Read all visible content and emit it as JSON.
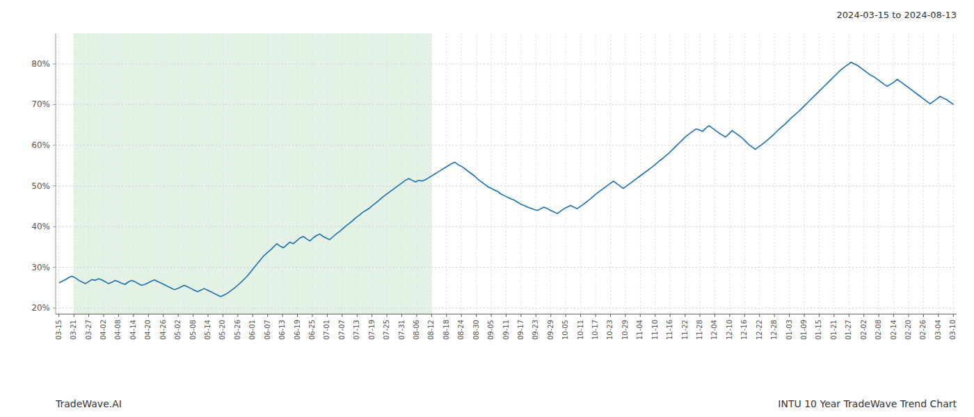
{
  "chart_data": {
    "type": "line",
    "title": "2024-03-15 to 2024-08-13",
    "annotations": [
      "TradeWave.AI",
      "INTU 10 Year TradeWave Trend Chart"
    ],
    "color": "#1a6faf",
    "grid": true,
    "shade": {
      "from": "03-21",
      "to": "08-12",
      "color": "#c8e6c9"
    },
    "xlim": [
      -1,
      272
    ],
    "xticks": [
      {
        "value": 0,
        "label": "03-15"
      },
      {
        "value": 4.5167,
        "label": "03-21"
      },
      {
        "value": 9.0333,
        "label": "03-27"
      },
      {
        "value": 13.55,
        "label": "04-02"
      },
      {
        "value": 18.0667,
        "label": "04-08"
      },
      {
        "value": 22.5833,
        "label": "04-14"
      },
      {
        "value": 27.1,
        "label": "04-20"
      },
      {
        "value": 31.6167,
        "label": "04-26"
      },
      {
        "value": 36.1333,
        "label": "05-02"
      },
      {
        "value": 40.65,
        "label": "05-08"
      },
      {
        "value": 45.1667,
        "label": "05-14"
      },
      {
        "value": 49.6833,
        "label": "05-20"
      },
      {
        "value": 54.2,
        "label": "05-26"
      },
      {
        "value": 58.7167,
        "label": "06-01"
      },
      {
        "value": 63.2333,
        "label": "06-07"
      },
      {
        "value": 67.75,
        "label": "06-13"
      },
      {
        "value": 72.2667,
        "label": "06-19"
      },
      {
        "value": 76.7833,
        "label": "06-25"
      },
      {
        "value": 81.3,
        "label": "07-01"
      },
      {
        "value": 85.8167,
        "label": "07-07"
      },
      {
        "value": 90.3333,
        "label": "07-13"
      },
      {
        "value": 94.85,
        "label": "07-19"
      },
      {
        "value": 99.3667,
        "label": "07-25"
      },
      {
        "value": 103.8833,
        "label": "07-31"
      },
      {
        "value": 108.4,
        "label": "08-06"
      },
      {
        "value": 112.9167,
        "label": "08-12"
      },
      {
        "value": 117.4333,
        "label": "08-18"
      },
      {
        "value": 121.95,
        "label": "08-24"
      },
      {
        "value": 126.4667,
        "label": "08-30"
      },
      {
        "value": 130.9833,
        "label": "09-05"
      },
      {
        "value": 135.5,
        "label": "09-11"
      },
      {
        "value": 140.0167,
        "label": "09-17"
      },
      {
        "value": 144.5333,
        "label": "09-23"
      },
      {
        "value": 149.05,
        "label": "09-29"
      },
      {
        "value": 153.5667,
        "label": "10-05"
      },
      {
        "value": 158.0833,
        "label": "10-11"
      },
      {
        "value": 162.6,
        "label": "10-17"
      },
      {
        "value": 167.1167,
        "label": "10-23"
      },
      {
        "value": 171.6333,
        "label": "10-29"
      },
      {
        "value": 176.15,
        "label": "11-04"
      },
      {
        "value": 180.6667,
        "label": "11-10"
      },
      {
        "value": 185.1833,
        "label": "11-16"
      },
      {
        "value": 189.7,
        "label": "11-22"
      },
      {
        "value": 194.2167,
        "label": "11-28"
      },
      {
        "value": 198.7333,
        "label": "12-04"
      },
      {
        "value": 203.25,
        "label": "12-10"
      },
      {
        "value": 207.7667,
        "label": "12-16"
      },
      {
        "value": 212.2833,
        "label": "12-22"
      },
      {
        "value": 216.8,
        "label": "12-28"
      },
      {
        "value": 221.3167,
        "label": "01-03"
      },
      {
        "value": 225.8333,
        "label": "01-09"
      },
      {
        "value": 230.35,
        "label": "01-15"
      },
      {
        "value": 234.8667,
        "label": "01-21"
      },
      {
        "value": 239.3833,
        "label": "01-27"
      },
      {
        "value": 243.9,
        "label": "02-02"
      },
      {
        "value": 248.4167,
        "label": "02-08"
      },
      {
        "value": 252.9333,
        "label": "02-14"
      },
      {
        "value": 257.45,
        "label": "02-20"
      },
      {
        "value": 261.9667,
        "label": "02-26"
      },
      {
        "value": 266.4833,
        "label": "03-04"
      },
      {
        "value": 271,
        "label": "03-10"
      }
    ],
    "ylim": [
      0.185,
      0.875
    ],
    "yticks": [
      {
        "value": 0.2,
        "label": "20%"
      },
      {
        "value": 0.3,
        "label": "30%"
      },
      {
        "value": 0.4,
        "label": "40%"
      },
      {
        "value": 0.5,
        "label": "50%"
      },
      {
        "value": 0.6,
        "label": "60%"
      },
      {
        "value": 0.7,
        "label": "70%"
      },
      {
        "value": 0.8,
        "label": "80%"
      }
    ],
    "values": [
      0.262,
      0.266,
      0.27,
      0.275,
      0.278,
      0.274,
      0.268,
      0.264,
      0.26,
      0.265,
      0.27,
      0.268,
      0.272,
      0.269,
      0.265,
      0.26,
      0.263,
      0.268,
      0.265,
      0.261,
      0.258,
      0.264,
      0.268,
      0.265,
      0.26,
      0.256,
      0.258,
      0.262,
      0.266,
      0.269,
      0.265,
      0.261,
      0.257,
      0.253,
      0.249,
      0.245,
      0.248,
      0.252,
      0.256,
      0.252,
      0.248,
      0.244,
      0.24,
      0.244,
      0.248,
      0.244,
      0.24,
      0.236,
      0.232,
      0.228,
      0.232,
      0.236,
      0.242,
      0.248,
      0.255,
      0.262,
      0.27,
      0.278,
      0.288,
      0.298,
      0.308,
      0.318,
      0.328,
      0.335,
      0.342,
      0.35,
      0.358,
      0.352,
      0.348,
      0.355,
      0.362,
      0.358,
      0.365,
      0.372,
      0.376,
      0.37,
      0.365,
      0.372,
      0.378,
      0.382,
      0.376,
      0.372,
      0.368,
      0.375,
      0.382,
      0.388,
      0.395,
      0.402,
      0.408,
      0.415,
      0.422,
      0.428,
      0.435,
      0.44,
      0.445,
      0.452,
      0.458,
      0.465,
      0.472,
      0.478,
      0.484,
      0.49,
      0.496,
      0.502,
      0.508,
      0.514,
      0.518,
      0.514,
      0.51,
      0.514,
      0.512,
      0.515,
      0.52,
      0.525,
      0.53,
      0.535,
      0.54,
      0.545,
      0.55,
      0.555,
      0.558,
      0.552,
      0.548,
      0.542,
      0.536,
      0.53,
      0.524,
      0.516,
      0.51,
      0.504,
      0.498,
      0.494,
      0.49,
      0.486,
      0.48,
      0.476,
      0.472,
      0.468,
      0.465,
      0.46,
      0.455,
      0.452,
      0.448,
      0.445,
      0.442,
      0.44,
      0.444,
      0.448,
      0.444,
      0.44,
      0.436,
      0.432,
      0.438,
      0.444,
      0.448,
      0.452,
      0.448,
      0.444,
      0.45,
      0.455,
      0.462,
      0.468,
      0.475,
      0.482,
      0.488,
      0.494,
      0.5,
      0.506,
      0.512,
      0.506,
      0.5,
      0.494,
      0.5,
      0.506,
      0.512,
      0.518,
      0.524,
      0.53,
      0.536,
      0.542,
      0.548,
      0.555,
      0.562,
      0.568,
      0.575,
      0.582,
      0.59,
      0.598,
      0.606,
      0.614,
      0.622,
      0.628,
      0.634,
      0.64,
      0.638,
      0.634,
      0.642,
      0.648,
      0.642,
      0.636,
      0.63,
      0.625,
      0.62,
      0.628,
      0.636,
      0.63,
      0.624,
      0.618,
      0.61,
      0.602,
      0.596,
      0.59,
      0.596,
      0.602,
      0.608,
      0.615,
      0.622,
      0.63,
      0.638,
      0.645,
      0.652,
      0.66,
      0.668,
      0.675,
      0.682,
      0.69,
      0.698,
      0.706,
      0.714,
      0.722,
      0.73,
      0.738,
      0.746,
      0.754,
      0.762,
      0.77,
      0.778,
      0.786,
      0.792,
      0.798,
      0.804,
      0.8,
      0.796,
      0.79,
      0.784,
      0.778,
      0.772,
      0.768,
      0.762,
      0.756,
      0.75,
      0.745,
      0.75,
      0.755,
      0.762,
      0.756,
      0.75,
      0.744,
      0.738,
      0.732,
      0.726,
      0.72,
      0.714,
      0.708,
      0.702,
      0.708,
      0.714,
      0.72,
      0.716,
      0.712,
      0.706,
      0.7
    ]
  }
}
